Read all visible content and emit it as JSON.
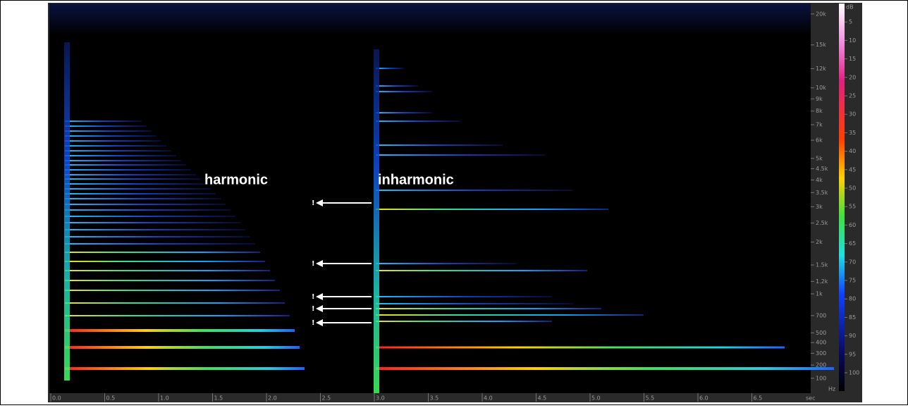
{
  "annotations": {
    "harmonic": "harmonic",
    "inharmonic": "inharmonic",
    "markers": [
      "!",
      "!",
      "!",
      "!",
      "!"
    ]
  },
  "time_axis": {
    "unit": "sec",
    "ticks": [
      {
        "value": 0,
        "label": "0.0"
      },
      0.5,
      {
        "value": 1,
        "label": "1.0"
      },
      1.5,
      {
        "value": 2,
        "label": "2.0"
      },
      2.5,
      {
        "value": 3,
        "label": "3.0"
      },
      3.5,
      {
        "value": 4,
        "label": "4.0"
      },
      4.5,
      {
        "value": 5,
        "label": "5.0"
      },
      5.5,
      {
        "value": 6,
        "label": "6.0"
      },
      6.5
    ]
  },
  "frequency_axis": {
    "unit": "Hz",
    "ticks": [
      {
        "value": 20000,
        "label": "20k"
      },
      {
        "value": 15000,
        "label": "15k"
      },
      {
        "value": 12000,
        "label": "12k"
      },
      {
        "value": 10000,
        "label": "10k"
      },
      {
        "value": 9000,
        "label": "9k"
      },
      {
        "value": 8000,
        "label": "8k"
      },
      {
        "value": 7000,
        "label": "7k"
      },
      {
        "value": 6000,
        "label": "6k"
      },
      {
        "value": 5000,
        "label": "5k"
      },
      {
        "value": 4500,
        "label": "4.5k"
      },
      {
        "value": 4000,
        "label": "4k"
      },
      {
        "value": 3500,
        "label": "3.5k"
      },
      {
        "value": 3000,
        "label": "3k"
      },
      {
        "value": 2500,
        "label": "2.5k"
      },
      {
        "value": 2000,
        "label": "2k"
      },
      {
        "value": 1500,
        "label": "1.5k"
      },
      {
        "value": 1200,
        "label": "1.2k"
      },
      {
        "value": 1000,
        "label": "1k"
      },
      700,
      500,
      400,
      300,
      200,
      100
    ]
  },
  "level_scale": {
    "unit": "dB",
    "ticks": [
      5,
      10,
      15,
      20,
      25,
      30,
      35,
      40,
      45,
      50,
      55,
      60,
      65,
      70,
      75,
      80,
      85,
      90,
      95,
      100
    ]
  }
}
